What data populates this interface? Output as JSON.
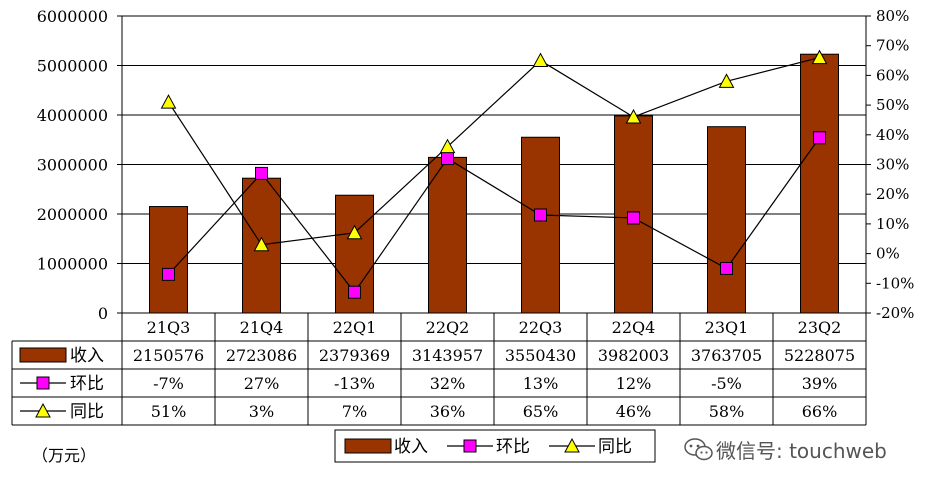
{
  "chart_data": {
    "type": "bar",
    "categories": [
      "21Q3",
      "21Q4",
      "22Q1",
      "22Q2",
      "22Q3",
      "22Q4",
      "23Q1",
      "23Q2"
    ],
    "series": [
      {
        "name": "收入",
        "kind": "bar",
        "axis": "left",
        "values": [
          2150576,
          2723086,
          2379369,
          3143957,
          3550430,
          3982003,
          3763705,
          5228075
        ],
        "labels": [
          "2150576",
          "2723086",
          "2379369",
          "3143957",
          "3550430",
          "3982003",
          "3763705",
          "5228075"
        ],
        "color": "#993300"
      },
      {
        "name": "环比",
        "kind": "line",
        "axis": "right",
        "marker": "square",
        "values": [
          -7,
          27,
          -13,
          32,
          13,
          12,
          -5,
          39
        ],
        "labels": [
          "-7%",
          "27%",
          "-13%",
          "32%",
          "13%",
          "12%",
          "-5%",
          "39%"
        ],
        "color": "#ff00ff"
      },
      {
        "name": "同比",
        "kind": "line",
        "axis": "right",
        "marker": "triangle",
        "values": [
          51,
          3,
          7,
          36,
          65,
          46,
          58,
          66
        ],
        "labels": [
          "51%",
          "3%",
          "7%",
          "36%",
          "65%",
          "46%",
          "58%",
          "66%"
        ],
        "color": "#ffff00"
      }
    ],
    "ylim": [
      0,
      6000000
    ],
    "yticks": [
      "0",
      "1000000",
      "2000000",
      "3000000",
      "4000000",
      "5000000",
      "6000000"
    ],
    "y2lim": [
      -20,
      80
    ],
    "y2ticks": [
      "-20%",
      "-10%",
      "0%",
      "10%",
      "20%",
      "30%",
      "40%",
      "50%",
      "60%",
      "70%",
      "80%"
    ],
    "unit_label": "（万元）",
    "legend_position": "bottom-right",
    "grid": true,
    "data_table": true
  },
  "watermark": {
    "icon": "wechat-icon",
    "text": "微信号: touchweb"
  }
}
